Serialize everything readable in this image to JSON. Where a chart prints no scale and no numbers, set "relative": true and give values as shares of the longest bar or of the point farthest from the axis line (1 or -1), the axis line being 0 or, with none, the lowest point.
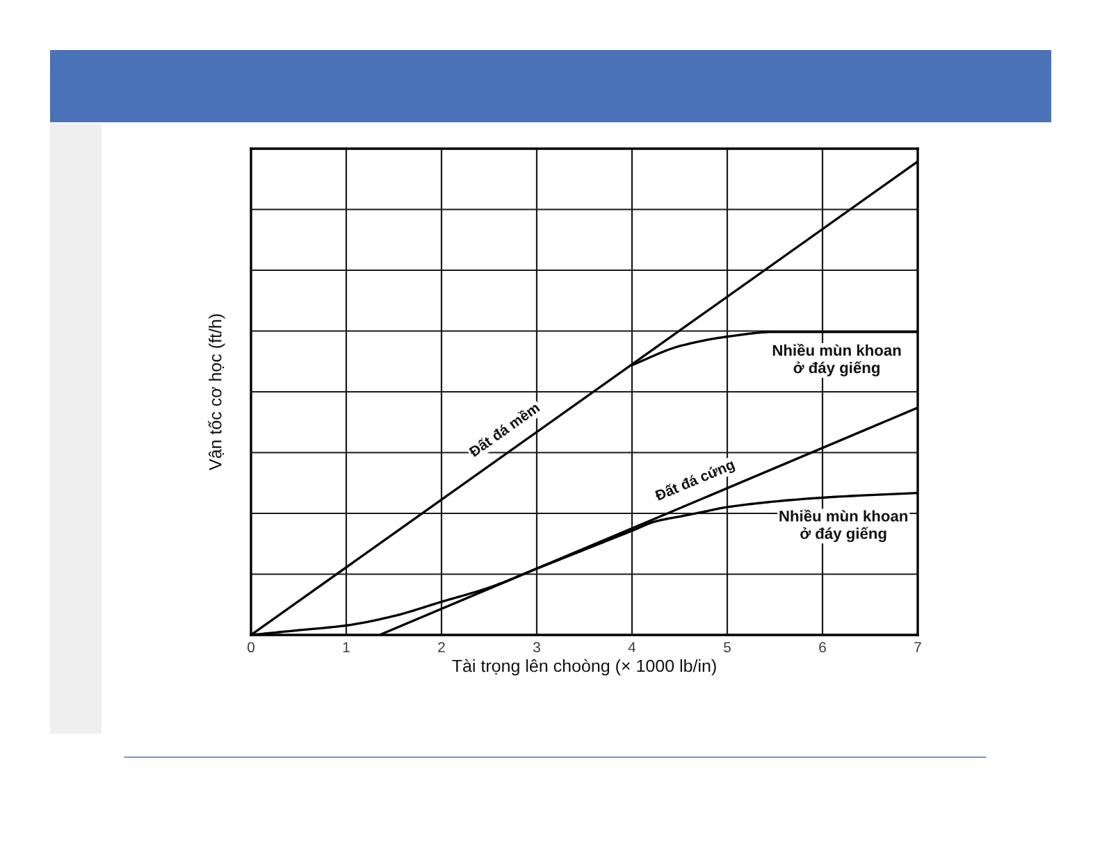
{
  "chart_data": {
    "type": "line",
    "relative": true,
    "xlabel": "Tài trọng lên choòng (× 1000 lb/in)",
    "ylabel": "Vận tốc cơ học (ft/h)",
    "xlim": [
      0,
      7
    ],
    "xticks": [
      0,
      1,
      2,
      3,
      4,
      5,
      6,
      7
    ],
    "grid": true,
    "series": [
      {
        "color": "#000000",
        "x": [
          0,
          7
        ],
        "values": [
          0,
          1
        ]
      },
      {
        "color": "#000000",
        "x": [
          4,
          4.5,
          5,
          5.5,
          6,
          7
        ],
        "values": [
          0.57,
          0.61,
          0.63,
          0.64,
          0.64,
          0.64
        ]
      },
      {
        "color": "#000000",
        "x": [
          1.35,
          7
        ],
        "values": [
          0,
          0.48
        ]
      },
      {
        "color": "#000000",
        "x": [
          0,
          0.5,
          1,
          1.5,
          2,
          2.5,
          3,
          3.5,
          4,
          4.25,
          4.5,
          4.75,
          5,
          6,
          7
        ],
        "values": [
          0,
          0.01,
          0.02,
          0.04,
          0.07,
          0.1,
          0.14,
          0.18,
          0.22,
          0.24,
          0.25,
          0.26,
          0.27,
          0.29,
          0.3
        ]
      }
    ],
    "annotations": [
      {
        "text": "Đất đá mềm",
        "x": 2.78,
        "y": 0.4
      },
      {
        "text": "Nhiều mùn khoan\nở đáy giếng",
        "x": 6.15,
        "y": 0.64
      },
      {
        "text": "Đất đá cứng",
        "x": 4.74,
        "y": 0.29
      },
      {
        "text": "Nhiều mùn khoan\nở đáy giếng",
        "x": 6.22,
        "y": 0.29
      }
    ]
  }
}
